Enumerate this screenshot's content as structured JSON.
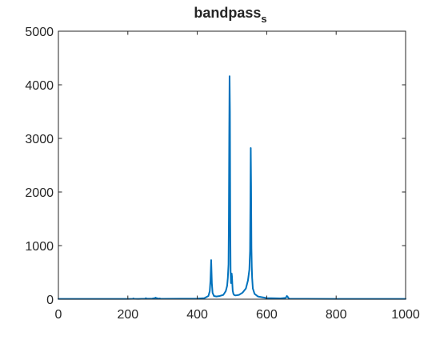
{
  "chart_data": {
    "type": "line",
    "title": "bandpass",
    "title_subscript": "s",
    "xlabel": "",
    "ylabel": "",
    "xlim": [
      0,
      1000
    ],
    "ylim": [
      0,
      5000
    ],
    "xticks": [
      0,
      200,
      400,
      600,
      800,
      1000
    ],
    "yticks": [
      0,
      1000,
      2000,
      3000,
      4000,
      5000
    ],
    "grid": false,
    "series": [
      {
        "color": "#0072BD",
        "x": [
          0,
          100,
          200,
          214,
          216,
          218,
          230,
          250,
          252,
          254,
          270,
          278,
          280,
          282,
          290,
          292,
          294,
          300,
          350,
          400,
          420,
          432,
          436,
          438,
          440,
          442,
          444,
          448,
          455,
          465,
          475,
          482,
          486,
          488,
          490,
          491,
          492,
          493,
          494,
          495,
          496,
          497,
          498,
          499,
          500,
          501,
          502,
          504,
          506,
          510,
          520,
          530,
          540,
          546,
          550,
          552,
          553,
          554,
          555,
          556,
          557,
          558,
          560,
          565,
          575,
          600,
          640,
          655,
          658,
          660,
          662,
          665,
          700,
          800,
          900,
          1000
        ],
        "y": [
          5,
          5,
          6,
          8,
          15,
          8,
          6,
          10,
          20,
          10,
          12,
          20,
          30,
          20,
          10,
          15,
          10,
          8,
          10,
          12,
          18,
          60,
          150,
          350,
          730,
          300,
          120,
          60,
          50,
          60,
          80,
          150,
          250,
          400,
          650,
          1500,
          3000,
          4160,
          3500,
          1400,
          500,
          300,
          450,
          480,
          420,
          280,
          160,
          100,
          80,
          70,
          80,
          120,
          200,
          350,
          550,
          900,
          1800,
          2820,
          2100,
          950,
          600,
          400,
          200,
          100,
          50,
          20,
          15,
          25,
          60,
          50,
          25,
          10,
          8,
          5,
          5,
          5
        ]
      }
    ]
  }
}
